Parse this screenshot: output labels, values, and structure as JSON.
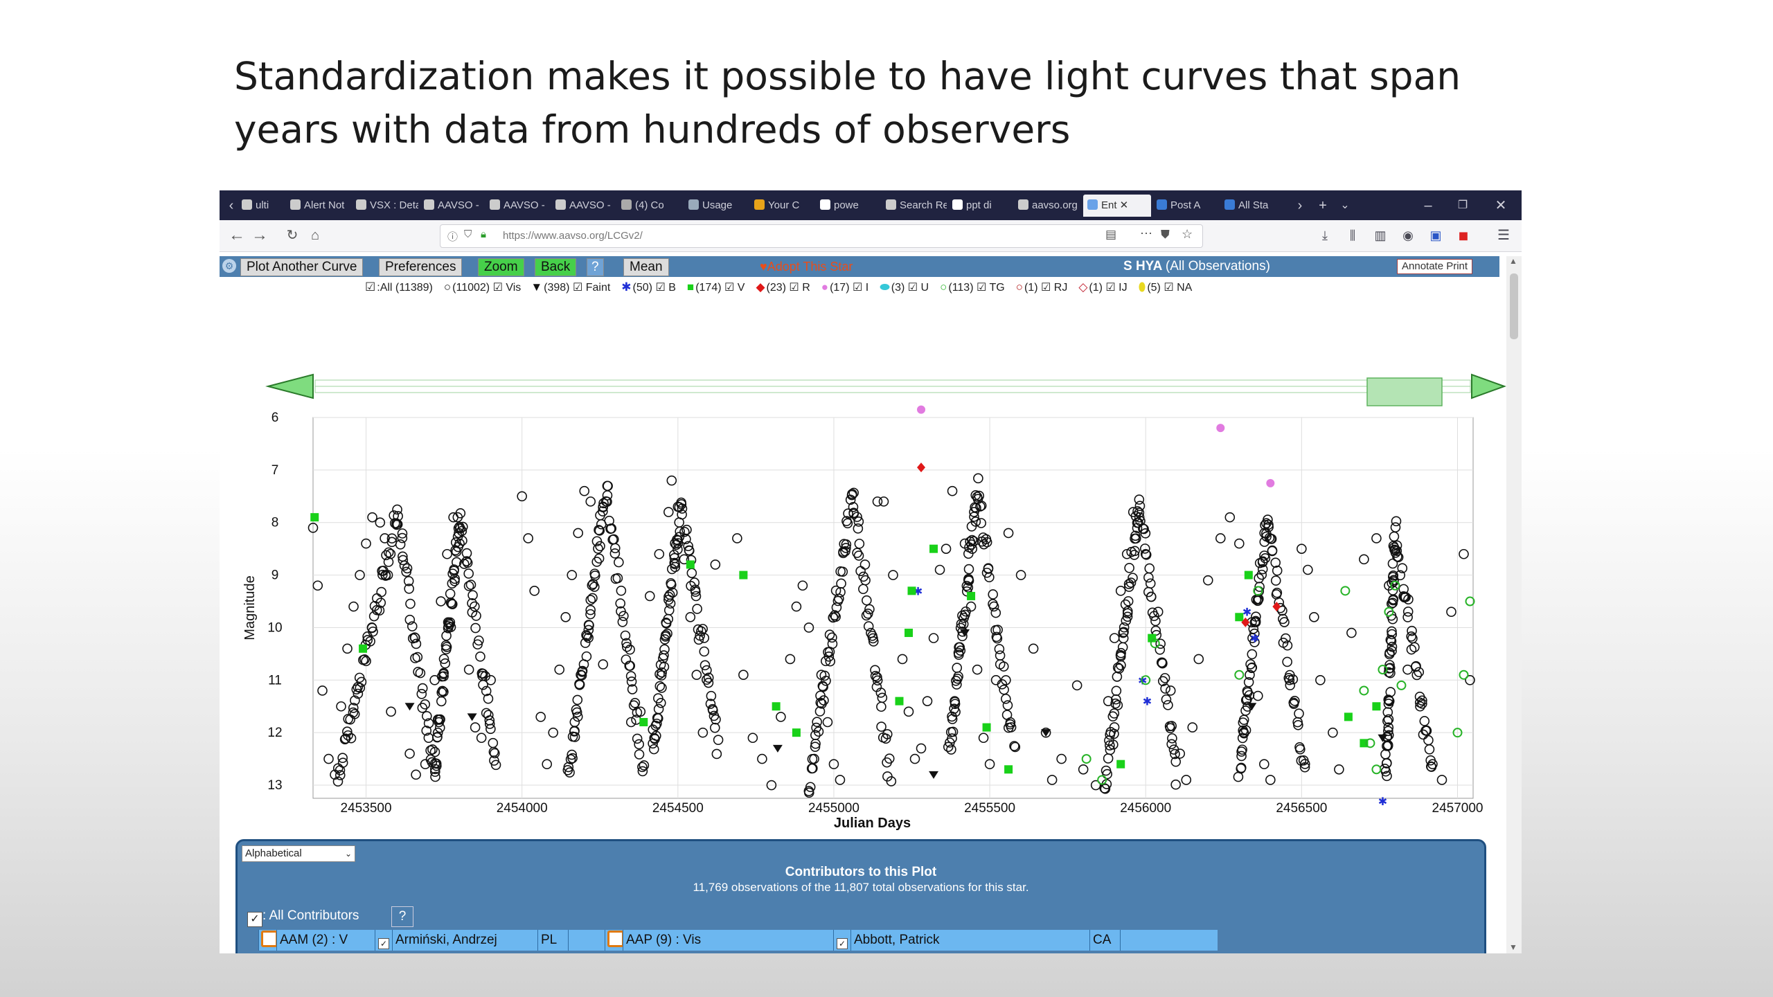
{
  "slide": {
    "title_line1": "Standardization makes it possible to have light curves that span",
    "title_line2": "years with data from hundreds of observers"
  },
  "browser": {
    "tabs": [
      "ulti",
      "Alert Not",
      "VSX : Deta",
      "AAVSO -",
      "AAVSO -",
      "AAVSO -",
      "(4) Co",
      "Usage",
      "Your C",
      "powe",
      "Search Re",
      "ppt di",
      "aavso.org",
      "Ent",
      "Post A",
      "All Sta"
    ],
    "active_tab": "Ent",
    "url": "https://www.aavso.org/LCGv2/"
  },
  "toolbar": {
    "plot_another": "Plot Another Curve",
    "preferences": "Preferences",
    "zoom": "Zoom",
    "back": "Back",
    "help": "?",
    "mean": "Mean",
    "adopt": "Adopt This Star",
    "star_name": "S HYA",
    "star_sub": "(All Observations)",
    "annotate": "Annotate Print"
  },
  "legend": [
    {
      "sym": "☑",
      "label": ":All (11389)"
    },
    {
      "sym": "○",
      "label": "(11002) ☑ Vis"
    },
    {
      "sym": "▼",
      "label": "(398) ☑ Faint"
    },
    {
      "sym": "✱",
      "label": "(50) ☑ B"
    },
    {
      "sym": "■",
      "label": "(174) ☑ V"
    },
    {
      "sym": "◆",
      "label": "(23) ☑ R"
    },
    {
      "sym": "●",
      "label": "(17) ☑ I"
    },
    {
      "sym": "⬬",
      "label": "(3) ☑ U"
    },
    {
      "sym": "○",
      "label": "(113) ☑ TG"
    },
    {
      "sym": "○",
      "label": "(1) ☑ RJ"
    },
    {
      "sym": "◇",
      "label": "(1) ☑ IJ"
    },
    {
      "sym": "⬮",
      "label": "(5) ☑ NA"
    }
  ],
  "colors": {
    "vis": "#111111",
    "faint": "#111111",
    "B": "#1f2fd6",
    "V": "#19d119",
    "R": "#e01818",
    "I": "#e17be0",
    "U": "#35c8d8",
    "TG": "#27b327",
    "RJ": "#b01515",
    "IJ": "#c02030",
    "NA": "#e8d820"
  },
  "chart_data": {
    "type": "scatter",
    "xlabel": "Julian Days",
    "ylabel": "Magnitude",
    "xlim": [
      2453330,
      2457050
    ],
    "ylim": [
      6,
      13.25
    ],
    "y_inverted": true,
    "x_ticks": [
      2453500,
      2454000,
      2454500,
      2455000,
      2455500,
      2456000,
      2456500,
      2457000
    ],
    "y_ticks": [
      6,
      7,
      8,
      9,
      10,
      11,
      12,
      13
    ],
    "cycles": [
      {
        "min_x": 2453410,
        "max_x": 2453600,
        "max_mag": 7.85,
        "min_mag": 12.9
      },
      {
        "min_x": 2453720,
        "max_x": 2453800,
        "max_mag": 7.9,
        "min_mag": 12.7
      },
      {
        "min_x": 2454150,
        "max_x": 2454270,
        "max_mag": 7.4,
        "min_mag": 12.8
      },
      {
        "min_x": 2454420,
        "max_x": 2454510,
        "max_mag": 7.7,
        "min_mag": 12.3
      },
      {
        "min_x": 2454920,
        "max_x": 2455060,
        "max_mag": 7.5,
        "min_mag": 13.0
      },
      {
        "min_x": 2455370,
        "max_x": 2455460,
        "max_mag": 7.4,
        "min_mag": 12.4
      },
      {
        "min_x": 2455870,
        "max_x": 2455980,
        "max_mag": 7.7,
        "min_mag": 13.1
      },
      {
        "min_x": 2456300,
        "max_x": 2456390,
        "max_mag": 7.9,
        "min_mag": 12.8
      },
      {
        "min_x": 2456770,
        "max_x": 2456800,
        "max_mag": 8.2,
        "min_mag": 12.9
      }
    ],
    "series": [
      {
        "name": "Vis",
        "x": [
          2453330,
          2453345,
          2453360,
          2453380,
          2453400,
          2453420,
          2453440,
          2453460,
          2453480,
          2453500,
          2453520,
          2453545,
          2453560,
          2453570,
          2453580,
          2453640,
          2453660,
          2453690,
          2453720,
          2453740,
          2453760,
          2453780,
          2453800,
          2453830,
          2453850,
          2453870,
          2453900,
          2454000,
          2454020,
          2454040,
          2454060,
          2454080,
          2454100,
          2454120,
          2454140,
          2454160,
          2454180,
          2454200,
          2454220,
          2454260,
          2454350,
          2454380,
          2454410,
          2454440,
          2454470,
          2454480,
          2454500,
          2454520,
          2454540,
          2454560,
          2454580,
          2454620,
          2454690,
          2454710,
          2454740,
          2454770,
          2454800,
          2454830,
          2454860,
          2454880,
          2454900,
          2454920,
          2454960,
          2454980,
          2455000,
          2455020,
          2455100,
          2455140,
          2455160,
          2455190,
          2455220,
          2455240,
          2455260,
          2455280,
          2455300,
          2455320,
          2455340,
          2455360,
          2455380,
          2455420,
          2455440,
          2455460,
          2455480,
          2455500,
          2455520,
          2455560,
          2455600,
          2455640,
          2455680,
          2455700,
          2455730,
          2455780,
          2455800,
          2455840,
          2455880,
          2455900,
          2455920,
          2455940,
          2455960,
          2455980,
          2456000,
          2456040,
          2456080,
          2456110,
          2456130,
          2456150,
          2456170,
          2456200,
          2456240,
          2456270,
          2456300,
          2456340,
          2456360,
          2456380,
          2456400,
          2456500,
          2456520,
          2456540,
          2456560,
          2456600,
          2456620,
          2456660,
          2456700,
          2456740,
          2456780,
          2456840,
          2456880,
          2456920,
          2456950,
          2456980,
          2457020,
          2457040
        ],
        "y": [
          8.1,
          9.2,
          11.2,
          12.5,
          12.8,
          11.5,
          10.4,
          9.6,
          9.0,
          8.4,
          7.9,
          8.0,
          8.3,
          9.0,
          11.6,
          12.4,
          12.8,
          12.6,
          11.0,
          9.5,
          8.6,
          7.9,
          8.4,
          10.8,
          11.9,
          12.1,
          11.0,
          7.5,
          8.3,
          9.3,
          11.7,
          12.6,
          12.0,
          10.8,
          9.8,
          9.0,
          8.2,
          7.4,
          7.6,
          10.7,
          11.8,
          11.6,
          9.4,
          8.6,
          7.8,
          7.2,
          7.7,
          8.7,
          9.8,
          10.9,
          12.0,
          8.8,
          8.3,
          10.9,
          12.1,
          12.5,
          13.0,
          11.7,
          10.6,
          9.6,
          9.2,
          10.0,
          10.9,
          11.8,
          12.6,
          12.9,
          8.8,
          7.6,
          7.6,
          9.0,
          10.6,
          11.6,
          12.5,
          12.3,
          11.4,
          10.2,
          8.9,
          8.5,
          7.4,
          8.4,
          9.6,
          10.8,
          12.1,
          12.6,
          11.0,
          8.2,
          9.0,
          10.4,
          12.0,
          12.9,
          12.5,
          11.1,
          12.7,
          13.0,
          11.4,
          10.2,
          9.3,
          8.6,
          7.8,
          7.9,
          8.6,
          9.7,
          11.2,
          12.4,
          12.9,
          11.9,
          10.6,
          9.1,
          8.3,
          7.9,
          8.4,
          9.9,
          11.3,
          12.6,
          12.9,
          8.5,
          8.9,
          9.8,
          11.0,
          12.0,
          12.7,
          10.1,
          8.7,
          8.3,
          9.2,
          10.8,
          11.5,
          12.6,
          12.9,
          9.7,
          8.6,
          11.0
        ]
      },
      {
        "name": "Faint",
        "x": [
          2453640,
          2453840,
          2454820,
          2455320,
          2455420,
          2455680,
          2456340,
          2456760
        ],
        "y": [
          11.5,
          11.7,
          12.3,
          12.8,
          10.1,
          12.0,
          11.5,
          12.1
        ]
      },
      {
        "name": "B",
        "x": [
          2455270,
          2455990,
          2456005,
          2456325,
          2456350,
          2456760
        ],
        "y": [
          9.3,
          11.0,
          11.4,
          9.7,
          10.2,
          13.3
        ]
      },
      {
        "name": "V",
        "x": [
          2453335,
          2453490,
          2454390,
          2454540,
          2454710,
          2454815,
          2454880,
          2455210,
          2455240,
          2455250,
          2455320,
          2455440,
          2455490,
          2455560,
          2455920,
          2456020,
          2456300,
          2456330,
          2456650,
          2456700,
          2456740
        ],
        "y": [
          7.9,
          10.4,
          11.8,
          8.8,
          9.0,
          11.5,
          12.0,
          11.4,
          10.1,
          9.3,
          8.5,
          9.4,
          11.9,
          12.7,
          12.6,
          10.2,
          9.8,
          9.0,
          11.7,
          12.2,
          11.5
        ]
      },
      {
        "name": "R",
        "x": [
          2455280,
          2456320,
          2456420
        ],
        "y": [
          6.95,
          9.9,
          9.6
        ]
      },
      {
        "name": "I",
        "x": [
          2455280,
          2456240,
          2456400
        ],
        "y": [
          5.85,
          6.2,
          7.25
        ]
      },
      {
        "name": "TG",
        "x": [
          2455810,
          2455860,
          2456000,
          2456030,
          2456300,
          2456360,
          2456640,
          2456700,
          2456720,
          2456740,
          2456760,
          2456780,
          2456800,
          2456820,
          2457000,
          2457020,
          2457040
        ],
        "y": [
          12.5,
          12.9,
          11.0,
          10.3,
          10.9,
          9.3,
          9.3,
          11.2,
          12.2,
          12.7,
          10.8,
          9.7,
          9.2,
          11.1,
          12.0,
          10.9,
          9.5
        ]
      },
      {
        "name": "NA",
        "x": [],
        "y": []
      }
    ]
  },
  "contributors": {
    "sort": "Alphabetical",
    "title": "Contributors to this Plot",
    "subtitle": "11,769 observations of the 11,807 total observations for this star.",
    "all_label": ": All Contributors",
    "help": "?",
    "rows": [
      {
        "code": "AAM (2) : V",
        "name": "Armiński, Andrzej",
        "country": "PL"
      },
      {
        "code": "AAP (9) : Vis",
        "name": "Abbott, Patrick",
        "country": "CA"
      }
    ]
  }
}
